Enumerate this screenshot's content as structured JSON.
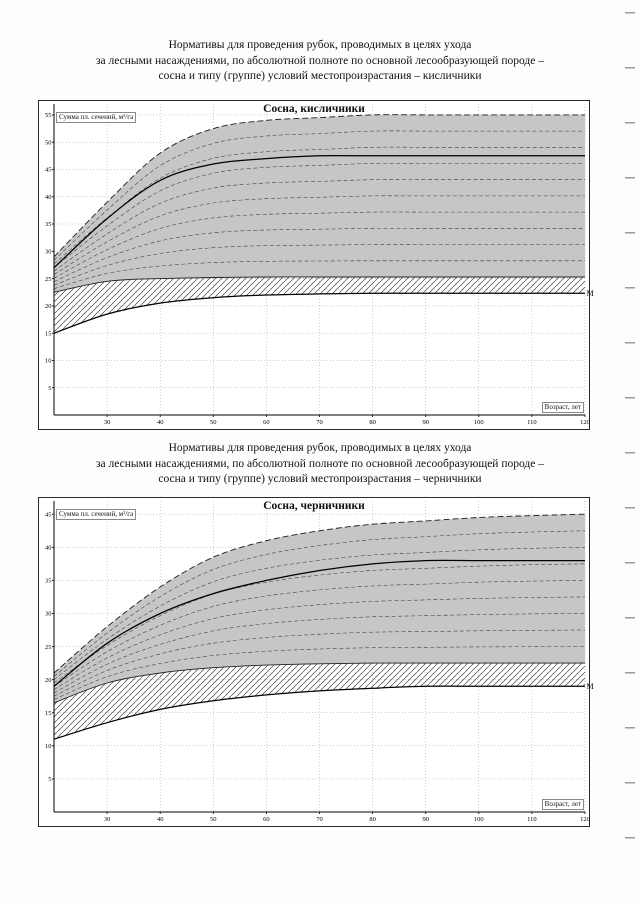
{
  "headings": [
    {
      "lines": [
        "Нормативы для проведения рубок, проводимых в целях ухода",
        "за лесными насаждениями, по абсолютной полноте по основной лесообразующей породе –",
        "сосна и типу (группе) условий местопроизрастания – кисличники"
      ]
    },
    {
      "lines": [
        "Нормативы для проведения рубок, проводимых в целях ухода",
        "за лесными насаждениями, по абсолютной полноте по основной лесообразующей породе –",
        "сосна и типу (группе) условий местопроизрастания – черничники"
      ]
    }
  ],
  "colors": {
    "band_gray": "#c6c6c6",
    "ink": "#000000",
    "grid": "#9a9a9a"
  },
  "chart_data": [
    {
      "type": "line",
      "title": "Сосна, кисличники",
      "ylabel": "Сумма пл. сечений, м²/га",
      "xlabel": "Возраст, лет",
      "x": [
        20,
        30,
        40,
        50,
        60,
        70,
        80,
        90,
        100,
        110,
        120
      ],
      "xlim": [
        20,
        120
      ],
      "ylim": [
        0,
        57
      ],
      "xticks": [
        30,
        40,
        50,
        60,
        70,
        80,
        90,
        100,
        110,
        120
      ],
      "yticks": [
        5,
        10,
        15,
        20,
        25,
        30,
        35,
        40,
        45,
        50,
        55
      ],
      "grid": "dotted",
      "legend": "none",
      "bands": [
        {
          "name": "upper-thinning-zone",
          "fill": "gray",
          "inner_dashed_lines": 9,
          "upper": [
            29,
            39,
            48,
            52.5,
            54,
            54.5,
            55,
            55,
            55,
            55,
            55
          ],
          "lower": [
            22.5,
            24.5,
            25,
            25.2,
            25.3,
            25.3,
            25.3,
            25.3,
            25.3,
            25.3,
            25.3
          ]
        },
        {
          "name": "lower-thinning-zone",
          "fill": "hatch",
          "inner_dashed_lines": 0,
          "upper": [
            22.5,
            24.5,
            25,
            25.2,
            25.3,
            25.3,
            25.3,
            25.3,
            25.3,
            25.3,
            25.3
          ],
          "lower": [
            15,
            18.5,
            20.5,
            21.5,
            22,
            22.2,
            22.3,
            22.3,
            22.3,
            22.3,
            22.3
          ]
        }
      ],
      "series": [
        {
          "name": "upper-solid-curve",
          "values": [
            27,
            36,
            43,
            46,
            47,
            47.5,
            47.5,
            47.5,
            47.5,
            47.5,
            47.5
          ]
        },
        {
          "name": "minimum-curve",
          "label": "М",
          "values": [
            15,
            18.5,
            20.5,
            21.5,
            22,
            22.2,
            22.3,
            22.3,
            22.3,
            22.3,
            22.3
          ]
        }
      ]
    },
    {
      "type": "line",
      "title": "Сосна, черничники",
      "ylabel": "Сумма пл. сечений, м²/га",
      "xlabel": "Возраст, лет",
      "x": [
        20,
        30,
        40,
        50,
        60,
        70,
        80,
        90,
        100,
        110,
        120
      ],
      "xlim": [
        20,
        120
      ],
      "ylim": [
        0,
        47
      ],
      "xticks": [
        30,
        40,
        50,
        60,
        70,
        80,
        90,
        100,
        110,
        120
      ],
      "yticks": [
        5,
        10,
        15,
        20,
        25,
        30,
        35,
        40,
        45
      ],
      "grid": "dotted",
      "legend": "none",
      "bands": [
        {
          "name": "upper-thinning-zone",
          "fill": "gray",
          "inner_dashed_lines": 8,
          "upper": [
            21,
            28,
            34,
            38.5,
            41,
            42.5,
            43.5,
            44,
            44.5,
            44.8,
            45
          ],
          "lower": [
            16.5,
            19.5,
            21,
            21.8,
            22.2,
            22.4,
            22.5,
            22.5,
            22.5,
            22.5,
            22.5
          ]
        },
        {
          "name": "lower-thinning-zone",
          "fill": "hatch",
          "inner_dashed_lines": 0,
          "upper": [
            16.5,
            19.5,
            21,
            21.8,
            22.2,
            22.4,
            22.5,
            22.5,
            22.5,
            22.5,
            22.5
          ],
          "lower": [
            11,
            13.5,
            15.5,
            16.8,
            17.7,
            18.3,
            18.7,
            19,
            19,
            19,
            19
          ]
        }
      ],
      "series": [
        {
          "name": "upper-solid-curve",
          "values": [
            19,
            25.5,
            30,
            33,
            35,
            36.5,
            37.5,
            38,
            38,
            38,
            38
          ]
        },
        {
          "name": "minimum-curve",
          "label": "М",
          "values": [
            11,
            13.5,
            15.5,
            16.8,
            17.7,
            18.3,
            18.7,
            19,
            19,
            19,
            19
          ]
        }
      ]
    }
  ]
}
